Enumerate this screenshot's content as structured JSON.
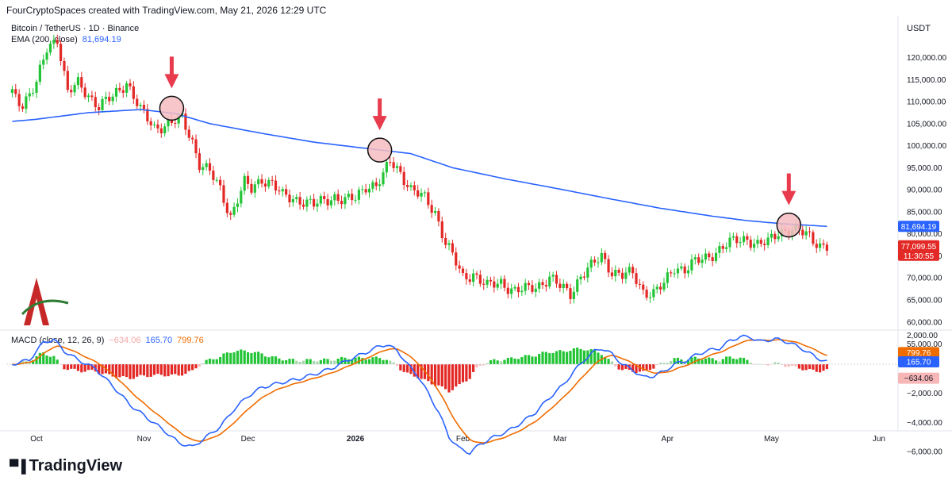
{
  "header": {
    "attribution": "FourCryptoSpaces created with TradingView.com, May 21, 2026 12:29 UTC"
  },
  "legend": {
    "symbol": "Bitcoin / TetherUS · 1D · Binance",
    "ema_label": "EMA (200, close)",
    "ema_value": "81,694.19"
  },
  "unit": "USDT",
  "macd_legend": {
    "label": "MACD (close, 12, 26, 9)",
    "hist": "−634.06",
    "macd": "165.70",
    "signal": "799.76"
  },
  "price_axis": {
    "ticks": [
      "120,000.00",
      "115,000.00",
      "110,000.00",
      "105,000.00",
      "100,000.00",
      "95,000.00",
      "90,000.00",
      "85,000.00",
      "80,000.00",
      "75,000.00",
      "70,000.00",
      "65,000.00",
      "60,000.00",
      "55,000.00"
    ],
    "tick_values": [
      120000,
      115000,
      110000,
      105000,
      100000,
      95000,
      90000,
      85000,
      80000,
      75000,
      70000,
      65000,
      60000,
      55000
    ]
  },
  "macd_axis": {
    "ticks": [
      "2,000.00",
      "−2,000.00",
      "−4,000.00",
      "−6,000.00"
    ],
    "tick_values": [
      2000,
      -2000,
      -4000,
      -6000
    ]
  },
  "badges": {
    "ema": "81,694.19",
    "price": "77,099.55",
    "countdown": "11:30:55",
    "signal": "799.76",
    "macd": "165.70",
    "hist": "−634.06"
  },
  "time_axis": [
    {
      "label": "Oct",
      "bold": false,
      "day": 0
    },
    {
      "label": "Nov",
      "bold": false,
      "day": 31
    },
    {
      "label": "Dec",
      "bold": false,
      "day": 61
    },
    {
      "label": "2026",
      "bold": true,
      "day": 92
    },
    {
      "label": "Feb",
      "bold": false,
      "day": 123
    },
    {
      "label": "Mar",
      "bold": false,
      "day": 151
    },
    {
      "label": "Apr",
      "bold": false,
      "day": 182
    },
    {
      "label": "May",
      "bold": false,
      "day": 212
    },
    {
      "label": "Jun",
      "bold": false,
      "day": 243
    }
  ],
  "colors": {
    "up": "#22c435",
    "down": "#e32926",
    "ema": "#2962ff",
    "macd": "#2962ff",
    "signal": "#ef6c00",
    "marker": "#e83b4d",
    "circle_fill": "#f6bcc1"
  },
  "brand": "TradingView",
  "chart_data": {
    "type": "candlestick",
    "x_unit": "days since Oct 1, 2025",
    "ylim": [
      55000,
      122000
    ],
    "price_anchors": [
      [
        -7,
        112000
      ],
      [
        -4,
        109500
      ],
      [
        0,
        114000
      ],
      [
        3,
        122000
      ],
      [
        6,
        124500
      ],
      [
        9,
        112000
      ],
      [
        12,
        114000
      ],
      [
        18,
        109000
      ],
      [
        22,
        111000
      ],
      [
        26,
        114500
      ],
      [
        30,
        108000
      ],
      [
        34,
        104000
      ],
      [
        38,
        105000
      ],
      [
        42,
        106000
      ],
      [
        45,
        101000
      ],
      [
        47,
        96000
      ],
      [
        50,
        94000
      ],
      [
        53,
        90000
      ],
      [
        56,
        84000
      ],
      [
        58,
        88000
      ],
      [
        60,
        91500
      ],
      [
        62,
        90000
      ],
      [
        65,
        92500
      ],
      [
        68,
        91500
      ],
      [
        71,
        88500
      ],
      [
        74,
        88000
      ],
      [
        77,
        87500
      ],
      [
        80,
        86500
      ],
      [
        83,
        87500
      ],
      [
        86,
        88500
      ],
      [
        89,
        87500
      ],
      [
        92,
        88000
      ],
      [
        95,
        91000
      ],
      [
        98,
        91000
      ],
      [
        100,
        93000
      ],
      [
        102,
        96500
      ],
      [
        105,
        94000
      ],
      [
        108,
        90000
      ],
      [
        112,
        88000
      ],
      [
        115,
        85000
      ],
      [
        118,
        78000
      ],
      [
        120,
        75000
      ],
      [
        123,
        70000
      ],
      [
        126,
        71000
      ],
      [
        130,
        68000
      ],
      [
        134,
        69000
      ],
      [
        138,
        67000
      ],
      [
        142,
        67500
      ],
      [
        145,
        68500
      ],
      [
        148,
        70000
      ],
      [
        151,
        68000
      ],
      [
        154,
        66500
      ],
      [
        157,
        70500
      ],
      [
        160,
        72500
      ],
      [
        163,
        75000
      ],
      [
        166,
        71500
      ],
      [
        169,
        70500
      ],
      [
        172,
        71000
      ],
      [
        175,
        67000
      ],
      [
        178,
        66500
      ],
      [
        181,
        68500
      ],
      [
        184,
        72500
      ],
      [
        187,
        72000
      ],
      [
        190,
        73500
      ],
      [
        193,
        74500
      ],
      [
        196,
        76000
      ],
      [
        199,
        77500
      ],
      [
        202,
        78500
      ],
      [
        205,
        79000
      ],
      [
        208,
        77500
      ],
      [
        211,
        78000
      ],
      [
        214,
        80500
      ],
      [
        217,
        81000
      ],
      [
        220,
        80500
      ],
      [
        223,
        79500
      ],
      [
        226,
        77500
      ],
      [
        228,
        77099
      ]
    ],
    "ema_anchors": [
      [
        -7,
        105500
      ],
      [
        0,
        106000
      ],
      [
        15,
        107500
      ],
      [
        30,
        108200
      ],
      [
        40,
        107300
      ],
      [
        50,
        105000
      ],
      [
        65,
        102800
      ],
      [
        80,
        100800
      ],
      [
        95,
        99400
      ],
      [
        108,
        98200
      ],
      [
        120,
        95000
      ],
      [
        135,
        92500
      ],
      [
        150,
        90300
      ],
      [
        165,
        88000
      ],
      [
        180,
        85800
      ],
      [
        195,
        84000
      ],
      [
        205,
        83000
      ],
      [
        215,
        82300
      ],
      [
        228,
        81694
      ]
    ],
    "ema_last": 81694.19,
    "last_price": 77099.55,
    "arrows": [
      {
        "day": 39,
        "price": 108500
      },
      {
        "day": 99,
        "price": 99000
      },
      {
        "day": 217,
        "price": 82000
      }
    ],
    "macd_ylim": [
      -6900,
      2900
    ],
    "macd_anchors": [
      [
        -7,
        0
      ],
      [
        -2,
        300
      ],
      [
        2,
        1500
      ],
      [
        5,
        1700
      ],
      [
        8,
        900
      ],
      [
        12,
        300
      ],
      [
        17,
        -300
      ],
      [
        22,
        -1500
      ],
      [
        27,
        -2800
      ],
      [
        32,
        -3700
      ],
      [
        37,
        -4600
      ],
      [
        41,
        -5400
      ],
      [
        45,
        -5700
      ],
      [
        49,
        -5000
      ],
      [
        53,
        -4300
      ],
      [
        57,
        -3100
      ],
      [
        61,
        -2200
      ],
      [
        65,
        -1600
      ],
      [
        70,
        -1300
      ],
      [
        75,
        -1050
      ],
      [
        80,
        -700
      ],
      [
        85,
        -300
      ],
      [
        90,
        300
      ],
      [
        95,
        800
      ],
      [
        99,
        1250
      ],
      [
        101,
        1350
      ],
      [
        104,
        950
      ],
      [
        107,
        0
      ],
      [
        110,
        -800
      ],
      [
        113,
        -2000
      ],
      [
        116,
        -3300
      ],
      [
        119,
        -5000
      ],
      [
        122,
        -5800
      ],
      [
        125,
        -6100
      ],
      [
        128,
        -5500
      ],
      [
        132,
        -5000
      ],
      [
        136,
        -4600
      ],
      [
        140,
        -4000
      ],
      [
        144,
        -3300
      ],
      [
        148,
        -2300
      ],
      [
        152,
        -1400
      ],
      [
        155,
        -500
      ],
      [
        158,
        300
      ],
      [
        161,
        900
      ],
      [
        163,
        1100
      ],
      [
        166,
        700
      ],
      [
        169,
        0
      ],
      [
        172,
        -400
      ],
      [
        175,
        -900
      ],
      [
        178,
        -800
      ],
      [
        181,
        -500
      ],
      [
        184,
        0
      ],
      [
        187,
        200
      ],
      [
        190,
        600
      ],
      [
        193,
        900
      ],
      [
        197,
        1100
      ],
      [
        200,
        1600
      ],
      [
        203,
        1900
      ],
      [
        206,
        1850
      ],
      [
        209,
        1550
      ],
      [
        213,
        1750
      ],
      [
        217,
        1500
      ],
      [
        221,
        1050
      ],
      [
        225,
        450
      ],
      [
        228,
        165.7
      ]
    ],
    "macd_last": 165.7,
    "signal_last": 799.76,
    "hist_last": -634.06
  }
}
